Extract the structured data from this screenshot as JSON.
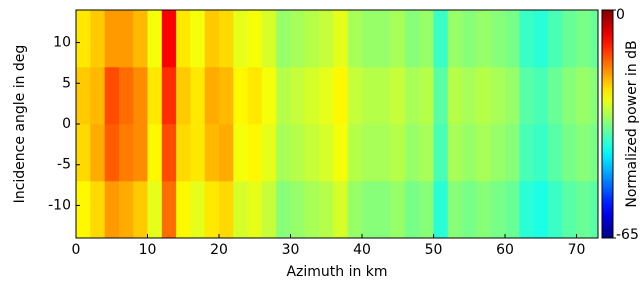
{
  "chart_data": {
    "type": "heatmap",
    "xlabel": "Azimuth in km",
    "ylabel": "Incidence angle in deg",
    "colorbar_label": "Normalized power in dB",
    "colormap": "jet",
    "x_edges": [
      0,
      2,
      4,
      6,
      8,
      10,
      12,
      14,
      16,
      18,
      20,
      22,
      24,
      26,
      28,
      30,
      32,
      34,
      36,
      38,
      40,
      42,
      44,
      46,
      48,
      50,
      52,
      54,
      56,
      58,
      60,
      62,
      64,
      66,
      68,
      70,
      72,
      73
    ],
    "y_edges": [
      -14,
      -7,
      0,
      7,
      14
    ],
    "values": [
      [
        -24,
        -22,
        -18,
        -19,
        -21,
        -26,
        -15,
        -24,
        -26,
        -23,
        -22,
        -27,
        -26,
        -28,
        -32,
        -31,
        -30,
        -29,
        -27,
        -31,
        -32,
        -32,
        -31,
        -33,
        -32,
        -38,
        -32,
        -33,
        -32,
        -33,
        -34,
        -38,
        -39,
        -37,
        -35,
        -34,
        -35
      ],
      [
        -22,
        -19,
        -14,
        -16,
        -17,
        -24,
        -13,
        -22,
        -23,
        -20,
        -19,
        -25,
        -24,
        -26,
        -30,
        -29,
        -28,
        -27,
        -25,
        -29,
        -30,
        -30,
        -29,
        -31,
        -30,
        -36,
        -30,
        -31,
        -30,
        -31,
        -32,
        -36,
        -37,
        -35,
        -33,
        -32,
        -33
      ],
      [
        -21,
        -20,
        -13,
        -15,
        -17,
        -23,
        -11,
        -21,
        -23,
        -19,
        -20,
        -24,
        -23,
        -25,
        -29,
        -28,
        -27,
        -26,
        -24,
        -28,
        -29,
        -29,
        -28,
        -30,
        -29,
        -35,
        -29,
        -30,
        -29,
        -30,
        -31,
        -35,
        -36,
        -34,
        -32,
        -31,
        -32
      ],
      [
        -23,
        -21,
        -18,
        -18,
        -20,
        -25,
        -8,
        -23,
        -25,
        -21,
        -22,
        -26,
        -25,
        -27,
        -31,
        -30,
        -29,
        -28,
        -26,
        -30,
        -31,
        -31,
        -30,
        -32,
        -31,
        -37,
        -31,
        -32,
        -31,
        -32,
        -33,
        -37,
        -38,
        -36,
        -34,
        -33,
        -34
      ]
    ],
    "xlim": [
      0,
      73
    ],
    "xticks": [
      0,
      10,
      20,
      30,
      40,
      50,
      60,
      70
    ],
    "ylim": [
      -14,
      14
    ],
    "yticks": [
      -10,
      -5,
      0,
      5,
      10
    ],
    "zlim": [
      -65,
      0
    ],
    "zticks": [
      0,
      -65
    ]
  }
}
